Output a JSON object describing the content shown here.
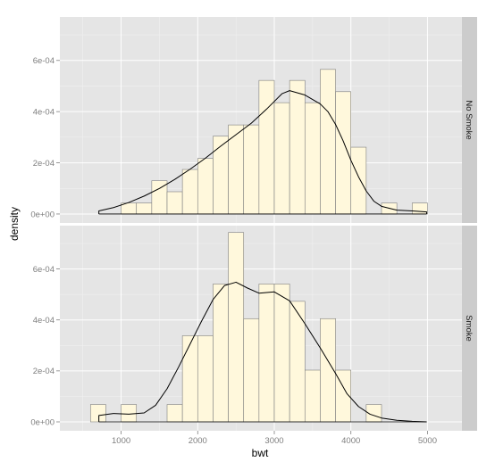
{
  "colors": {
    "panel_bg": "#e5e5e5",
    "grid_major": "#ffffff",
    "grid_minor": "#f2f2f2",
    "bar_fill": "#fff8dc",
    "bar_stroke": "#7f7f7f",
    "density_line": "#000000",
    "strip_bg": "#cccccc"
  },
  "chart_data": {
    "type": "bar",
    "subtype": "faceted histogram with density overlay",
    "xlabel": "bwt",
    "ylabel": "density",
    "xlim": [
      200,
      5450
    ],
    "ylim": [
      -3.5e-05,
      0.00077
    ],
    "x_ticks": [
      1000,
      2000,
      3000,
      4000,
      5000
    ],
    "x_tick_labels": [
      "1000",
      "2000",
      "3000",
      "4000",
      "5000"
    ],
    "y_ticks": [
      0,
      0.0002,
      0.0004,
      0.0006
    ],
    "y_tick_labels": [
      "0e+00",
      "2e-04",
      "4e-04",
      "6e-04"
    ],
    "grid": true,
    "bin_width": 200,
    "bin_starts": [
      600,
      800,
      1000,
      1200,
      1400,
      1600,
      1800,
      2000,
      2200,
      2400,
      2600,
      2800,
      3000,
      3200,
      3400,
      3600,
      3800,
      4000,
      4200,
      4400,
      4600,
      4800
    ],
    "panels": [
      {
        "strip_label": "No Smoke",
        "histogram": [
          0,
          0,
          4.3e-05,
          4.3e-05,
          0.00013,
          8.7e-05,
          0.000174,
          0.000217,
          0.000304,
          0.000348,
          0.000348,
          0.000522,
          0.000435,
          0.000522,
          0.000435,
          0.000565,
          0.000478,
          0.000261,
          0,
          4.3e-05,
          0,
          4.3e-05
        ],
        "density": {
          "x": [
            709,
            900,
            1100,
            1300,
            1500,
            1700,
            1900,
            2100,
            2300,
            2500,
            2700,
            2900,
            3100,
            3200,
            3400,
            3600,
            3700,
            3800,
            3900,
            4000,
            4100,
            4200,
            4300,
            4400,
            4600,
            4800,
            4990
          ],
          "y": [
            1.2e-05,
            2.5e-05,
            4.5e-05,
            7e-05,
            0.0001,
            0.000135,
            0.000175,
            0.000218,
            0.000265,
            0.00031,
            0.000355,
            0.00041,
            0.00047,
            0.000482,
            0.000465,
            0.00043,
            0.0004,
            0.00035,
            0.000285,
            0.00021,
            0.000145,
            9e-05,
            5e-05,
            3e-05,
            1.5e-05,
            1.2e-05,
            8e-06
          ]
        }
      },
      {
        "strip_label": "Smoke",
        "histogram": [
          6.8e-05,
          0,
          6.8e-05,
          0,
          0,
          6.8e-05,
          0.000338,
          0.000338,
          0.000541,
          0.000743,
          0.000405,
          0.000541,
          0.000541,
          0.000473,
          0.000203,
          0.000405,
          0.000203,
          0,
          6.8e-05,
          0,
          0,
          0
        ],
        "density": {
          "x": [
            709,
            900,
            1100,
            1300,
            1450,
            1600,
            1750,
            1900,
            2050,
            2200,
            2350,
            2500,
            2650,
            2800,
            3000,
            3200,
            3400,
            3600,
            3800,
            3950,
            4100,
            4250,
            4400,
            4600,
            4800,
            4990
          ],
          "y": [
            2.5e-05,
            3.3e-05,
            3e-05,
            3.5e-05,
            6.5e-05,
            0.00013,
            0.000215,
            0.000305,
            0.000395,
            0.00048,
            0.000535,
            0.000548,
            0.000525,
            0.000505,
            0.00051,
            0.000475,
            0.000385,
            0.00029,
            0.00019,
            0.00011,
            6e-05,
            3e-05,
            1.5e-05,
            6e-06,
            2e-06,
            0
          ]
        }
      }
    ]
  }
}
